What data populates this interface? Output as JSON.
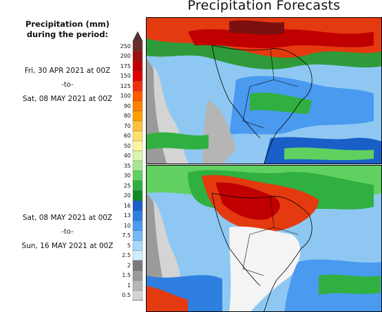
{
  "title": "Precipitation Forecasts",
  "legend": {
    "heading_line1": "Precipitation (mm)",
    "heading_line2": "during the period:",
    "ticks": [
      "250",
      "200",
      "175",
      "150",
      "125",
      "100",
      "90",
      "80",
      "70",
      "60",
      "50",
      "40",
      "35",
      "30",
      "25",
      "20",
      "16",
      "13",
      "10",
      "7.5",
      "5",
      "2.5",
      "2",
      "1.5",
      "1",
      "0.5"
    ],
    "colors": [
      "#6b2e2a",
      "#9b1010",
      "#c00000",
      "#e00000",
      "#f03010",
      "#ff5a00",
      "#ff8000",
      "#ffa000",
      "#ffc040",
      "#ffe070",
      "#fff5a0",
      "#d8f5b0",
      "#a8e890",
      "#60d060",
      "#30b040",
      "#108a28",
      "#1a5fc8",
      "#2f7fe0",
      "#4a9af0",
      "#78b8f5",
      "#a8d8fa",
      "#d0ecfc",
      "#7a7a7a",
      "#9a9a9a",
      "#b5b5b5",
      "#d4d4d4"
    ]
  },
  "periods": [
    {
      "start": "Fri, 30 APR 2021 at 00Z",
      "separator": "-to-",
      "end": "Sat, 08 MAY 2021 at 00Z"
    },
    {
      "start": "Sat, 08 MAY 2021 at 00Z",
      "separator": "-to-",
      "end": "Sun, 16 MAY 2021 at 00Z"
    }
  ]
}
